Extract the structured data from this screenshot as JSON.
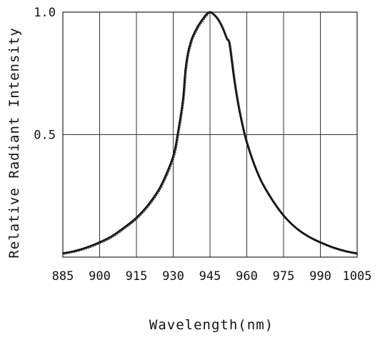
{
  "chart_data": {
    "type": "line",
    "title": "",
    "xlabel": "Wavelength(nm)",
    "ylabel": "Relative Radiant Intensity",
    "xlim": [
      885,
      1005
    ],
    "ylim": [
      0,
      1.0
    ],
    "x_ticks": [
      885,
      900,
      915,
      930,
      945,
      960,
      975,
      990,
      1005
    ],
    "x_tick_labels": [
      "885",
      "900",
      "915",
      "930",
      "945",
      "960",
      "975",
      "990",
      "1005"
    ],
    "y_ticks": [
      0.5,
      1.0
    ],
    "y_tick_labels": [
      "0.5",
      "1.0"
    ],
    "grid": "on",
    "legend": "none",
    "series": [
      {
        "x": [
          885,
          890,
          895,
          900,
          905,
          910,
          915,
          920,
          925,
          930,
          932,
          934,
          935,
          936,
          937,
          938,
          940,
          942,
          944,
          945,
          946,
          948,
          950,
          952,
          953,
          955,
          957,
          960,
          965,
          970,
          975,
          980,
          985,
          990,
          995,
          1000,
          1005
        ],
        "y": [
          0.015,
          0.025,
          0.04,
          0.06,
          0.085,
          0.12,
          0.16,
          0.215,
          0.29,
          0.41,
          0.51,
          0.64,
          0.76,
          0.83,
          0.87,
          0.9,
          0.94,
          0.97,
          0.995,
          1.0,
          0.995,
          0.975,
          0.94,
          0.89,
          0.87,
          0.72,
          0.6,
          0.47,
          0.33,
          0.24,
          0.17,
          0.12,
          0.085,
          0.06,
          0.04,
          0.025,
          0.015
        ]
      }
    ],
    "line_color": "#2a2a2a"
  }
}
